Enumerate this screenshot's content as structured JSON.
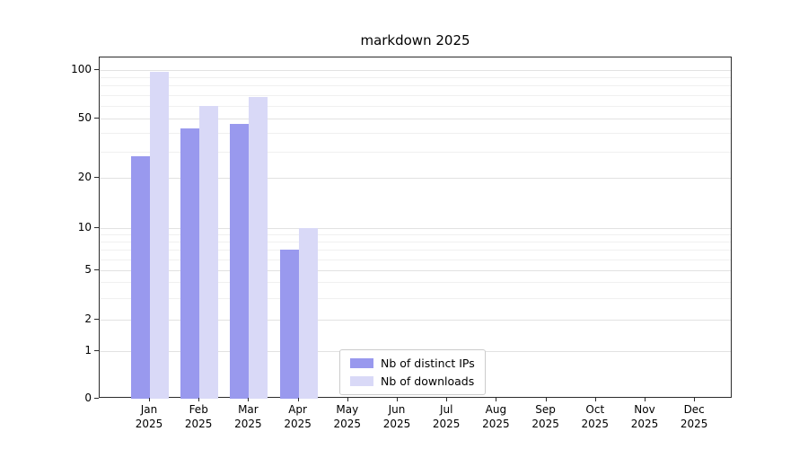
{
  "chart_data": {
    "type": "bar",
    "title": "markdown 2025",
    "scale": "symlog",
    "grid": true,
    "categories": [
      "Jan",
      "Feb",
      "Mar",
      "Apr",
      "May",
      "Jun",
      "Jul",
      "Aug",
      "Sep",
      "Oct",
      "Nov",
      "Dec"
    ],
    "year": "2025",
    "yticks": [
      0,
      1,
      2,
      5,
      10,
      20,
      50,
      100
    ],
    "minor_gridlines": [
      3,
      4,
      6,
      7,
      8,
      9,
      30,
      40,
      60,
      70,
      80,
      90
    ],
    "ylim": [
      0,
      110
    ],
    "legend_position": "lower center",
    "series": [
      {
        "name": "Nb of distinct IPs",
        "color": "#9999ee",
        "values": [
          28,
          43,
          46,
          7,
          0,
          0,
          0,
          0,
          0,
          0,
          0,
          0
        ]
      },
      {
        "name": "Nb of downloads",
        "color": "#d9d9f7",
        "values": [
          97,
          60,
          68,
          10,
          0,
          0,
          0,
          0,
          0,
          0,
          0,
          0
        ]
      }
    ]
  },
  "colors": {
    "axis": "#2b2b2b",
    "grid_major": "#e2e2e2",
    "grid_minor": "#f0f0f0",
    "legend_border": "#cccccc"
  }
}
